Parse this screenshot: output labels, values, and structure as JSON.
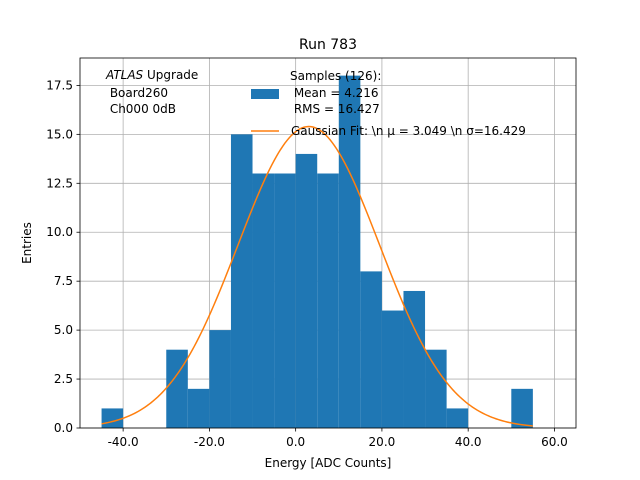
{
  "chart_data": {
    "type": "bar",
    "title": "Run 783",
    "xlabel": "Energy [ADC Counts]",
    "ylabel": "Entries",
    "xlim": [
      -50,
      65
    ],
    "ylim": [
      0,
      18.9
    ],
    "x_ticks": [
      -40,
      -20,
      0,
      20,
      40,
      60
    ],
    "x_tick_labels": [
      "-40.0",
      "-20.0",
      "0.0",
      "20.0",
      "40.0",
      "60.0"
    ],
    "y_ticks": [
      0,
      2.5,
      5,
      7.5,
      10,
      12.5,
      15,
      17.5
    ],
    "y_tick_labels": [
      "0.0",
      "2.5",
      "5.0",
      "7.5",
      "10.0",
      "12.5",
      "15.0",
      "17.5"
    ],
    "grid": true,
    "bins": [
      {
        "x0": -45,
        "x1": -40,
        "count": 1
      },
      {
        "x0": -30,
        "x1": -25,
        "count": 4
      },
      {
        "x0": -25,
        "x1": -20,
        "count": 2
      },
      {
        "x0": -20,
        "x1": -15,
        "count": 5
      },
      {
        "x0": -15,
        "x1": -10,
        "count": 15
      },
      {
        "x0": -10,
        "x1": -5,
        "count": 13
      },
      {
        "x0": -5,
        "x1": 0,
        "count": 13
      },
      {
        "x0": 0,
        "x1": 5,
        "count": 14
      },
      {
        "x0": 5,
        "x1": 10,
        "count": 13
      },
      {
        "x0": 10,
        "x1": 15,
        "count": 18
      },
      {
        "x0": 15,
        "x1": 20,
        "count": 8
      },
      {
        "x0": 20,
        "x1": 25,
        "count": 6
      },
      {
        "x0": 25,
        "x1": 30,
        "count": 7
      },
      {
        "x0": 30,
        "x1": 35,
        "count": 4
      },
      {
        "x0": 35,
        "x1": 40,
        "count": 1
      },
      {
        "x0": 50,
        "x1": 55,
        "count": 2
      }
    ],
    "fit": {
      "type": "gaussian",
      "amplitude": 15.4,
      "mu": 3.049,
      "sigma": 16.429,
      "x_range": [
        -45,
        55
      ]
    },
    "colors": {
      "bars": "#1f77b4",
      "fit_line": "#ff7f0e",
      "grid": "#b0b0b0"
    },
    "annotation": {
      "italic": "ATLAS",
      "line1_rest": " Upgrade",
      "line2": " Board260",
      "line3": " Ch000 0dB"
    },
    "legend": {
      "position": "top-right",
      "hist_label_line1": "Samples (126):",
      "hist_label_line2": " Mean = 4.216",
      "hist_label_line3": " RMS = 16.427",
      "fit_label": "Gaussian Fit: \\n μ = 3.049 \\n σ=16.429"
    }
  }
}
